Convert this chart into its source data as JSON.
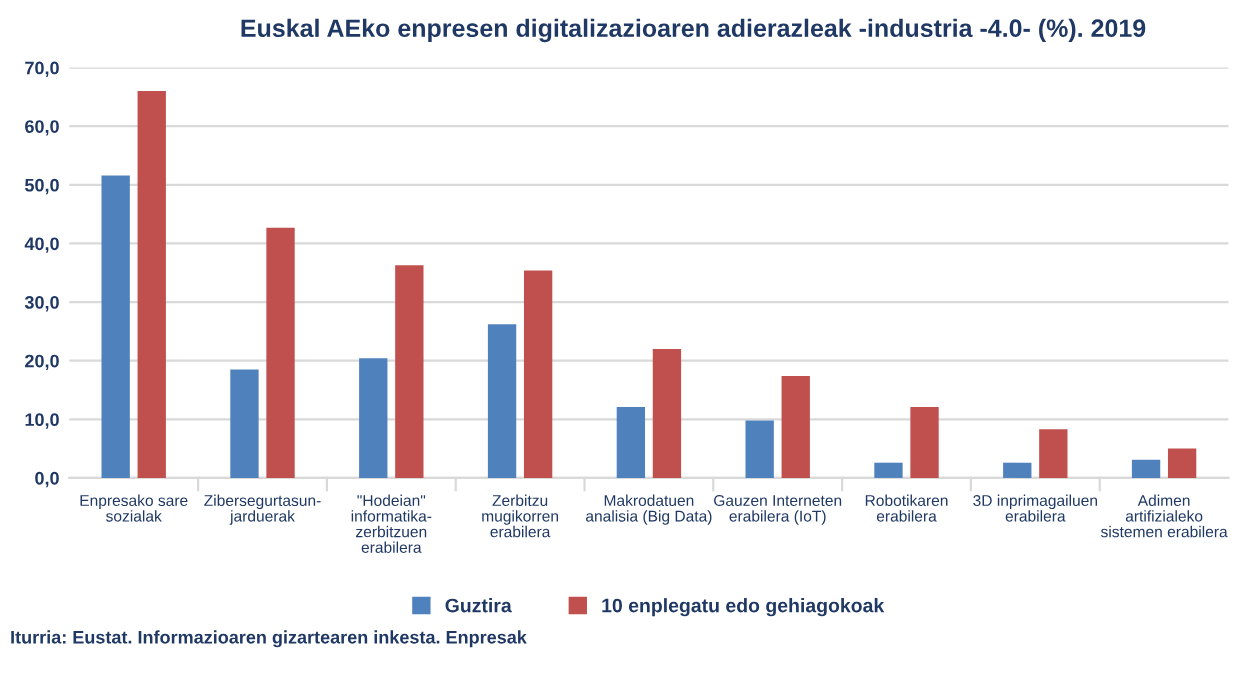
{
  "chart_data": {
    "type": "bar",
    "title": "Euskal AEko enpresen digitalizazioaren adierazleak -industria -4.0- (%). 2019",
    "categories": [
      "Enpresako sare\nsozialak",
      "Zibersegurtasun-\njarduerak",
      "\"Hodeian\"\ninformatika-\nzerbitzuen\nerabilera",
      "Zerbitzu\nmugikorren\nerabilera",
      "Makrodatuen\nanalisia (Big Data)",
      "Gauzen Interneten\nerabilera (IoT)",
      "Robotikaren\nerabilera",
      "3D inprimagailuen\nerabilera",
      "Adimen\nartifizialeko\nsistemen erabilera"
    ],
    "series": [
      {
        "name": "Guztira",
        "color": "#4f81bd",
        "values": [
          51.6,
          18.5,
          20.4,
          26.2,
          12.1,
          9.8,
          2.6,
          2.6,
          3.1
        ]
      },
      {
        "name": "10 enplegatu edo gehiagokoak",
        "color": "#c0504d",
        "values": [
          66.0,
          42.7,
          36.3,
          35.4,
          22.0,
          17.4,
          12.1,
          8.3,
          5.0
        ]
      }
    ],
    "ylim": [
      0,
      70
    ],
    "yticks": [
      {
        "value": 0,
        "label": "0,0"
      },
      {
        "value": 10,
        "label": "10,0"
      },
      {
        "value": 20,
        "label": "20,0"
      },
      {
        "value": 30,
        "label": "30,0"
      },
      {
        "value": 40,
        "label": "40,0"
      },
      {
        "value": 50,
        "label": "50,0"
      },
      {
        "value": 60,
        "label": "60,0"
      },
      {
        "value": 70,
        "label": "70,0"
      }
    ],
    "grid": "y",
    "legend": "bottom",
    "annotations": [
      "Iturria: Eustat. Informazioaren gizartearen inkesta. Enpresak"
    ]
  }
}
